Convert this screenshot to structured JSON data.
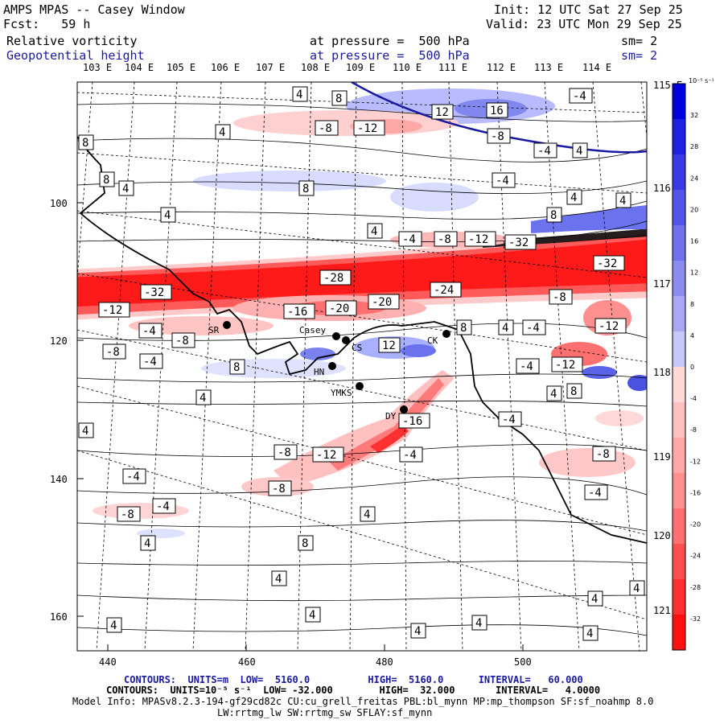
{
  "header": {
    "title": "AMPS MPAS -- Casey Window",
    "fcst": "Fcst:   59 h",
    "init": "Init: 12 UTC Sat 27 Sep 25",
    "valid": "Valid: 23 UTC Mon 29 Sep 25",
    "field1_name": "Relative vorticity",
    "field1_level": "at pressure =  500 hPa",
    "field1_sm": "sm= 2",
    "field2_name": "Geopotential height",
    "field2_level": "at pressure =  500 hPa",
    "field2_sm": "sm= 2"
  },
  "longitudes_top": [
    "103 E",
    "104 E",
    "105 E",
    "106 E",
    "107 E",
    "108 E",
    "109 E",
    "110 E",
    "111 E",
    "112 E",
    "113 E",
    "114 E"
  ],
  "longitudes_right": [
    "115 E",
    "116 E",
    "117 E",
    "118 E",
    "119 E",
    "120 E",
    "121 E"
  ],
  "y_axis_labels": [
    "100",
    "120",
    "140",
    "160"
  ],
  "x_axis_labels": [
    "440",
    "460",
    "480",
    "500"
  ],
  "stations": [
    "Casey",
    "CS",
    "SR",
    "HN",
    "YMKS",
    "DY",
    "CK"
  ],
  "contour_labels": [
    "4",
    "8",
    "12",
    "16",
    "-4",
    "-8",
    "-12",
    "-16",
    "-20",
    "-24",
    "-28",
    "-32"
  ],
  "colorbar": {
    "unit": "10⁻⁵ s⁻¹",
    "labels": [
      "32",
      "28",
      "24",
      "20",
      "16",
      "12",
      "8",
      "4",
      "0",
      "-4",
      "-8",
      "-12",
      "-16",
      "-20",
      "-24",
      "-28",
      "-32"
    ],
    "positive_color": "#0000dd",
    "negative_color": "#ff1010"
  },
  "footer": {
    "line1": "CONTOURS:  UNITS=m  LOW=  5160.0          HIGH=  5160.0      INTERVAL=   60.000",
    "line2": "CONTOURS:  UNITS=10⁻⁵ s⁻¹  LOW= -32.000        HIGH=  32.000       INTERVAL=   4.0000",
    "line3": "Model Info: MPASv8.2.3-194-gf29cd82c CU:cu_grell_freitas PBL:bl_mynn MP:mp_thompson SF:sf_noahmp 8.0",
    "line4": "LW:rrtmg_lw SW:rrtmg_sw SFLAY:sf_mynn"
  }
}
